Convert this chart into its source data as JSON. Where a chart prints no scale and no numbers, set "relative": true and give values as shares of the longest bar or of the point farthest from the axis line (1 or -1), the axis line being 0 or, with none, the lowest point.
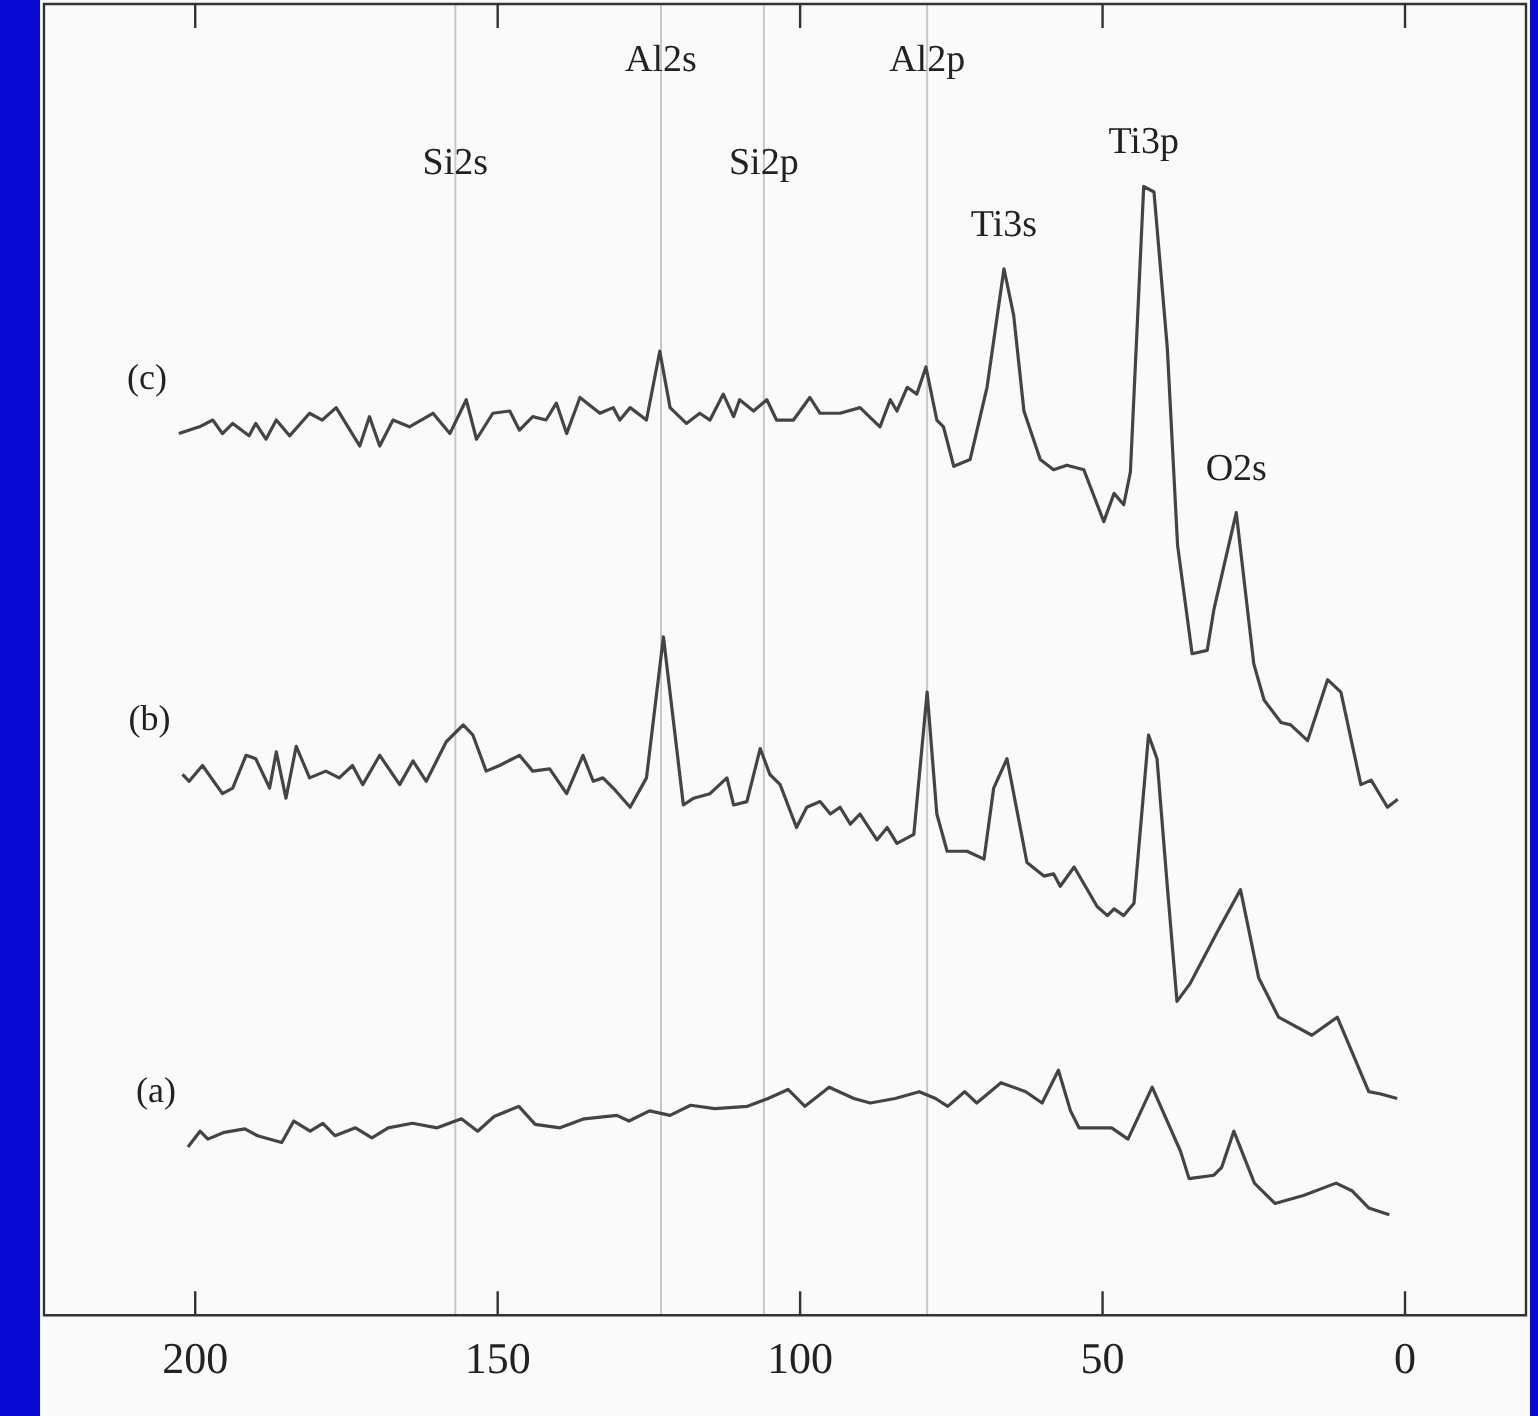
{
  "chart_data": {
    "type": "line",
    "relative": true,
    "xlim": [
      225,
      -20
    ],
    "xticks": [
      200,
      150,
      100,
      50,
      0
    ],
    "grid": false,
    "legend": false,
    "marker": "none",
    "line_style": "solid",
    "tick_labels": "x",
    "ref_lines": [
      {
        "axis": "x",
        "value": 157,
        "color": "#c8c8c8"
      },
      {
        "axis": "x",
        "value": 123,
        "color": "#c8c8c8"
      },
      {
        "axis": "x",
        "value": 106,
        "color": "#c8c8c8"
      },
      {
        "axis": "x",
        "value": 79,
        "color": "#c8c8c8"
      }
    ],
    "annotations": [
      {
        "text": "Si2s",
        "x": 157,
        "y": 0.982
      },
      {
        "text": "Al2s",
        "x": 123,
        "y": 1.073
      },
      {
        "text": "Si2p",
        "x": 106,
        "y": 0.982
      },
      {
        "text": "Al2p",
        "x": 79,
        "y": 1.073
      },
      {
        "text": "Ti3s",
        "x": 66.3,
        "y": 0.927
      },
      {
        "text": "Ti3p",
        "x": 43.2,
        "y": 1.0
      },
      {
        "text": "O2s",
        "x": 27.9,
        "y": 0.711
      }
    ],
    "series": [
      {
        "name": "(c)",
        "color": "#444444",
        "x": [
          202.7,
          199.3,
          197.1,
          195.5,
          193.8,
          191.1,
          190.0,
          188.3,
          186.6,
          184.4,
          181.1,
          179.0,
          176.7,
          175.1,
          172.8,
          171.2,
          169.5,
          167.3,
          164.6,
          160.7,
          157.9,
          155.2,
          153.5,
          150.8,
          148.0,
          146.4,
          144.2,
          142.0,
          140.3,
          138.6,
          136.4,
          133.1,
          130.9,
          129.8,
          128.1,
          125.4,
          123.2,
          121.5,
          118.8,
          116.6,
          114.9,
          112.7,
          111.0,
          110.0,
          107.7,
          105.5,
          103.9,
          101.1,
          98.4,
          96.7,
          93.4,
          90.1,
          86.8,
          85.1,
          84.0,
          82.3,
          80.7,
          79.2,
          77.4,
          76.3,
          74.6,
          71.9,
          69.1,
          66.3,
          64.7,
          63.0,
          60.3,
          58.1,
          55.9,
          53.1,
          49.8,
          48.1,
          46.5,
          45.4,
          43.2,
          41.5,
          39.3,
          37.6,
          35.2,
          32.7,
          31.6,
          27.9,
          25.0,
          23.3,
          20.5,
          18.9,
          16.1,
          12.8,
          10.6,
          7.3,
          5.6,
          2.9,
          1.2
        ],
        "values": [
          0.781,
          0.787,
          0.793,
          0.781,
          0.79,
          0.779,
          0.79,
          0.776,
          0.793,
          0.779,
          0.799,
          0.793,
          0.804,
          0.79,
          0.77,
          0.796,
          0.77,
          0.793,
          0.787,
          0.799,
          0.781,
          0.811,
          0.776,
          0.799,
          0.801,
          0.784,
          0.796,
          0.793,
          0.808,
          0.781,
          0.813,
          0.799,
          0.804,
          0.793,
          0.804,
          0.793,
          0.854,
          0.804,
          0.79,
          0.799,
          0.793,
          0.816,
          0.796,
          0.811,
          0.801,
          0.811,
          0.793,
          0.793,
          0.813,
          0.799,
          0.799,
          0.804,
          0.787,
          0.811,
          0.801,
          0.822,
          0.816,
          0.84,
          0.793,
          0.787,
          0.752,
          0.758,
          0.822,
          0.927,
          0.886,
          0.801,
          0.758,
          0.749,
          0.753,
          0.749,
          0.703,
          0.728,
          0.718,
          0.747,
          1.0,
          0.995,
          0.857,
          0.682,
          0.586,
          0.589,
          0.625,
          0.711,
          0.577,
          0.545,
          0.525,
          0.523,
          0.509,
          0.563,
          0.552,
          0.47,
          0.474,
          0.45,
          0.457
        ]
      },
      {
        "name": "(b)",
        "color": "#444444",
        "x": [
          202.1,
          201.0,
          198.8,
          195.5,
          193.8,
          191.6,
          190.0,
          187.7,
          186.6,
          185.0,
          183.3,
          181.1,
          178.4,
          176.2,
          174.0,
          172.3,
          169.5,
          166.2,
          164.0,
          161.8,
          158.5,
          155.7,
          154.1,
          151.9,
          149.7,
          146.4,
          144.2,
          141.4,
          138.6,
          135.9,
          134.2,
          132.6,
          130.9,
          128.1,
          125.4,
          122.6,
          119.3,
          117.6,
          114.9,
          112.1,
          111.0,
          108.8,
          106.6,
          105.0,
          103.3,
          100.6,
          98.9,
          96.7,
          95.0,
          93.4,
          91.7,
          90.1,
          87.3,
          85.6,
          84.0,
          81.2,
          79.0,
          77.4,
          75.7,
          72.4,
          69.6,
          68.0,
          65.8,
          62.5,
          59.7,
          58.1,
          57.0,
          54.7,
          50.9,
          49.2,
          48.1,
          46.5,
          44.8,
          42.4,
          41.0,
          39.3,
          37.7,
          35.5,
          31.0,
          27.2,
          24.2,
          20.9,
          15.4,
          11.2,
          6.0,
          4.0,
          1.3
        ],
        "values": [
          0.479,
          0.473,
          0.487,
          0.462,
          0.467,
          0.496,
          0.493,
          0.467,
          0.499,
          0.458,
          0.504,
          0.476,
          0.482,
          0.476,
          0.487,
          0.47,
          0.496,
          0.47,
          0.491,
          0.473,
          0.508,
          0.523,
          0.514,
          0.482,
          0.487,
          0.496,
          0.482,
          0.484,
          0.462,
          0.496,
          0.473,
          0.476,
          0.467,
          0.45,
          0.476,
          0.601,
          0.452,
          0.458,
          0.462,
          0.476,
          0.452,
          0.455,
          0.502,
          0.479,
          0.47,
          0.432,
          0.45,
          0.455,
          0.444,
          0.45,
          0.435,
          0.444,
          0.421,
          0.432,
          0.418,
          0.426,
          0.552,
          0.444,
          0.411,
          0.411,
          0.404,
          0.467,
          0.493,
          0.401,
          0.389,
          0.391,
          0.38,
          0.397,
          0.362,
          0.354,
          0.36,
          0.354,
          0.365,
          0.514,
          0.493,
          0.38,
          0.278,
          0.294,
          0.34,
          0.377,
          0.299,
          0.264,
          0.248,
          0.264,
          0.198,
          0.196,
          0.192
        ]
      },
      {
        "name": "(a)",
        "color": "#444444",
        "x": [
          201.2,
          199.2,
          197.9,
          195.2,
          191.8,
          189.7,
          185.7,
          183.7,
          181.0,
          178.9,
          176.9,
          173.5,
          170.8,
          168.1,
          164.1,
          160.0,
          156.0,
          153.3,
          150.6,
          146.5,
          143.8,
          139.7,
          135.7,
          130.3,
          128.3,
          124.9,
          121.5,
          118.1,
          114.1,
          108.7,
          105.3,
          102.0,
          99.2,
          95.2,
          91.1,
          88.4,
          84.3,
          80.3,
          77.6,
          75.6,
          72.8,
          70.8,
          66.8,
          62.7,
          60.0,
          57.3,
          55.3,
          53.9,
          48.5,
          45.8,
          41.8,
          37.1,
          35.7,
          31.6,
          30.3,
          28.3,
          24.9,
          21.5,
          16.8,
          11.4,
          8.7,
          6.0,
          2.6
        ],
        "values": [
          0.149,
          0.163,
          0.156,
          0.162,
          0.165,
          0.159,
          0.153,
          0.172,
          0.163,
          0.17,
          0.159,
          0.166,
          0.157,
          0.166,
          0.17,
          0.166,
          0.174,
          0.163,
          0.176,
          0.185,
          0.169,
          0.166,
          0.174,
          0.177,
          0.172,
          0.181,
          0.177,
          0.186,
          0.183,
          0.185,
          0.192,
          0.2,
          0.185,
          0.202,
          0.192,
          0.188,
          0.192,
          0.198,
          0.192,
          0.185,
          0.198,
          0.188,
          0.206,
          0.198,
          0.188,
          0.217,
          0.181,
          0.166,
          0.166,
          0.156,
          0.202,
          0.145,
          0.121,
          0.124,
          0.131,
          0.163,
          0.117,
          0.099,
          0.106,
          0.117,
          0.11,
          0.095,
          0.089
        ]
      }
    ]
  }
}
